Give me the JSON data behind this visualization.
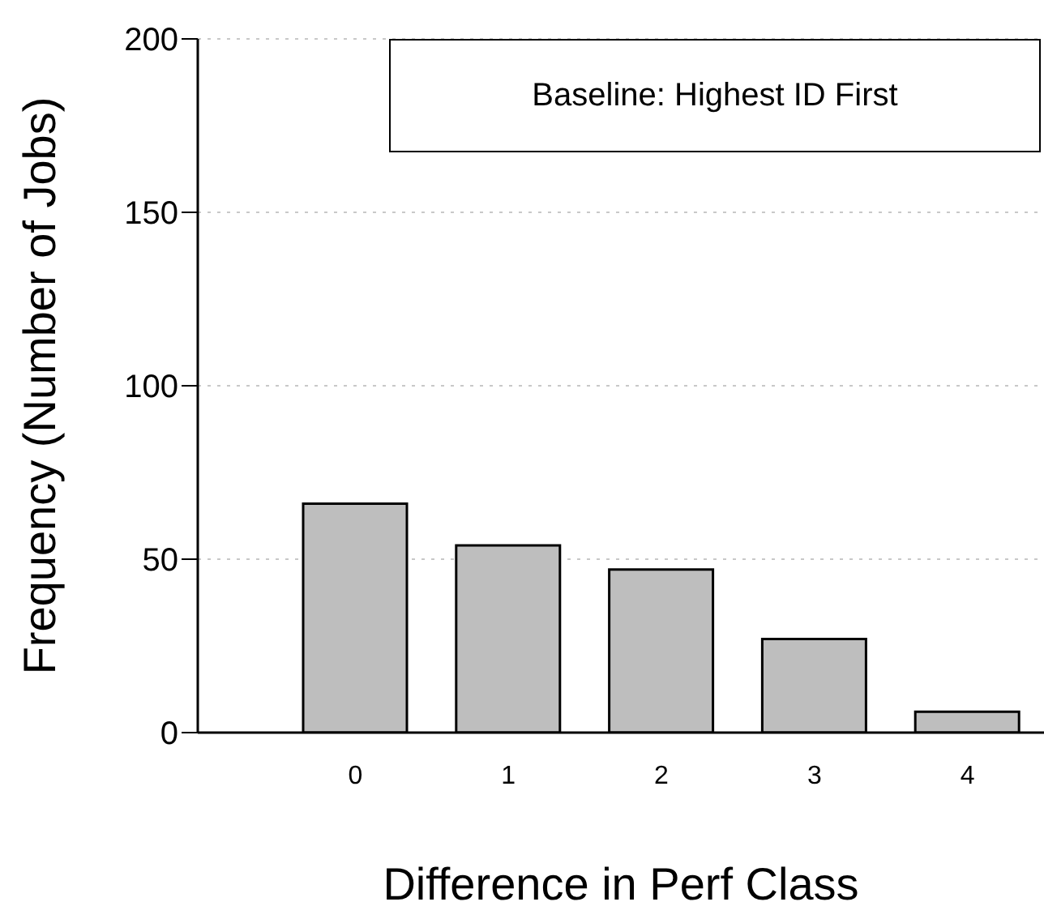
{
  "chart_data": {
    "type": "bar",
    "categories": [
      "0",
      "1",
      "2",
      "3",
      "4"
    ],
    "values": [
      66,
      54,
      47,
      27,
      6
    ],
    "color": "#bebebe",
    "xlabel": "Difference in Perf Class",
    "ylabel": "Frequency (Number of Jobs)",
    "ylim": [
      0,
      200
    ],
    "yticks": [
      0,
      50,
      100,
      150,
      200
    ],
    "grid": "y",
    "annotations": [
      "Baseline: Highest ID First"
    ]
  }
}
